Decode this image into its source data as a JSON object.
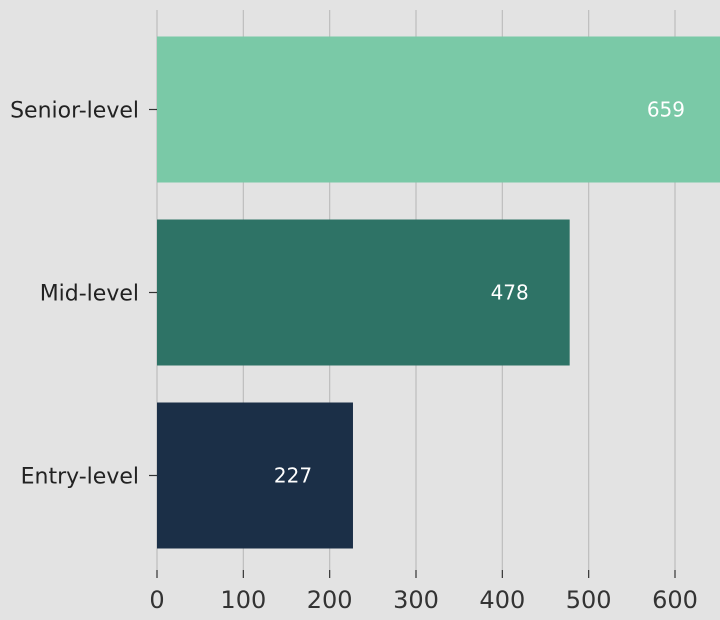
{
  "chart_data": {
    "type": "bar",
    "orientation": "horizontal",
    "title": "",
    "xlabel": "",
    "ylabel": "",
    "categories": [
      "Senior-level",
      "Mid-level",
      "Entry-level"
    ],
    "values": [
      659,
      478,
      227
    ],
    "data_labels": [
      "659",
      "478",
      "227"
    ],
    "colors": [
      "#7ac9a7",
      "#2e7366",
      "#1b2f47"
    ],
    "x_ticks": [
      0,
      100,
      200,
      300,
      400,
      500,
      600
    ],
    "x_tick_labels": [
      "0",
      "100",
      "200",
      "300",
      "400",
      "500",
      "600"
    ],
    "xlim": [
      0,
      650
    ],
    "grid": true,
    "background": "#e3e3e3",
    "grid_color": "#bdbdbd"
  }
}
